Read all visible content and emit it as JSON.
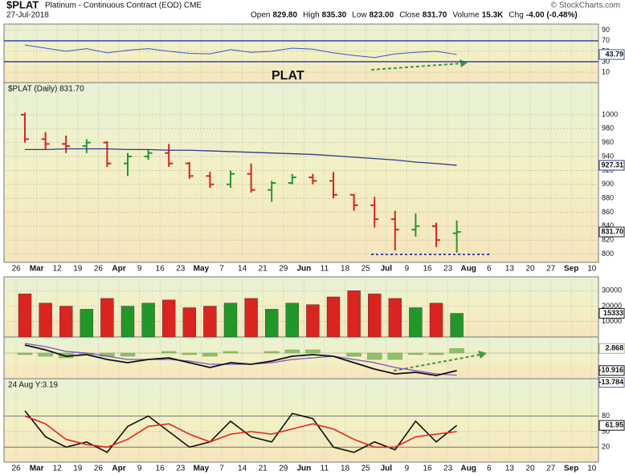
{
  "header": {
    "ticker": "$PLAT",
    "name": "Platinum - Continuous Contract (EOD) CME",
    "date": "27-Jul-2018",
    "copyright": "© StockCharts.com",
    "quote": [
      {
        "label": "Open",
        "value": "829.80"
      },
      {
        "label": "High",
        "value": "835.30"
      },
      {
        "label": "Low",
        "value": "823.00"
      },
      {
        "label": "Close",
        "value": "831.70"
      },
      {
        "label": "Volume",
        "value": "15.3K"
      },
      {
        "label": "Chg",
        "value": "-4.00 (-0.48%)"
      }
    ]
  },
  "chart_data": [
    {
      "type": "line",
      "annotation": "PLAT",
      "ylim": [
        -10,
        102
      ],
      "yticks": [
        10,
        30,
        50,
        70,
        90
      ],
      "reference_lines": [
        30,
        70
      ],
      "grid": true,
      "series": [
        {
          "color": "#3a55c8",
          "values": [
            62,
            56,
            50,
            55,
            47,
            52,
            55,
            50,
            46,
            45,
            53,
            48,
            50,
            56,
            54,
            47,
            42,
            38,
            45,
            48,
            50,
            43.79,
            null,
            null,
            null,
            null,
            null,
            null,
            null
          ],
          "last_label": "43.79"
        }
      ]
    },
    {
      "type": "ohlc",
      "title": "$PLAT (Daily) 831.70",
      "ylim": [
        788,
        1046
      ],
      "yticks": [
        800,
        820,
        840,
        860,
        880,
        900,
        920,
        940,
        960,
        980,
        1000
      ],
      "grid": true,
      "up_color": "#23962a",
      "down_color": "#d9241f",
      "categories": [
        "26",
        "Mar",
        "12",
        "19",
        "26",
        "Apr",
        "9",
        "16",
        "23",
        "May",
        "7",
        "14",
        "21",
        "29",
        "Jun",
        "11",
        "18",
        "25",
        "Jul",
        "9",
        "16",
        "23",
        "Aug",
        "6",
        "13",
        "20",
        "27",
        "Sep",
        "10"
      ],
      "open": [
        1000,
        965,
        958,
        955,
        960,
        930,
        940,
        945,
        930,
        912,
        900,
        915,
        892,
        902,
        910,
        905,
        885,
        870,
        850,
        835,
        840,
        829.8,
        null,
        null,
        null,
        null,
        null,
        null,
        null
      ],
      "high": [
        1003,
        975,
        970,
        965,
        962,
        945,
        950,
        958,
        932,
        918,
        920,
        930,
        905,
        915,
        915,
        918,
        886,
        882,
        862,
        858,
        845,
        848,
        null,
        null,
        null,
        null,
        null,
        null,
        null
      ],
      "low": [
        960,
        950,
        945,
        945,
        925,
        912,
        935,
        925,
        908,
        895,
        895,
        888,
        875,
        900,
        900,
        880,
        862,
        838,
        805,
        825,
        810,
        802,
        null,
        null,
        null,
        null,
        null,
        null,
        null
      ],
      "close": [
        965,
        958,
        955,
        960,
        930,
        940,
        945,
        930,
        912,
        900,
        915,
        892,
        902,
        910,
        905,
        885,
        870,
        850,
        835,
        840,
        820,
        831.7,
        null,
        null,
        null,
        null,
        null,
        null,
        null
      ],
      "close_label": "831.70",
      "ma": {
        "color": "#2b3a8c",
        "values": [
          950,
          950,
          951,
          951,
          951,
          950,
          950,
          949,
          949,
          948,
          947,
          946,
          945,
          944,
          943,
          941,
          939,
          937,
          935,
          932,
          930,
          927.31,
          null,
          null,
          null,
          null,
          null,
          null,
          null
        ],
        "last_label": "927.31"
      }
    },
    {
      "type": "bar",
      "ylim": [
        0,
        39000
      ],
      "yticks": [
        10000,
        20000,
        30000
      ],
      "grid": true,
      "values": [
        28000,
        22000,
        20000,
        18000,
        25000,
        20000,
        22000,
        24000,
        19000,
        20000,
        22000,
        25000,
        18000,
        22000,
        21000,
        26000,
        30000,
        28000,
        25000,
        19000,
        22000,
        15333,
        null,
        null,
        null,
        null,
        null,
        null,
        null
      ],
      "last_label": "15333"
    },
    {
      "type": "macd",
      "ylim": [
        -16,
        10
      ],
      "yticks": [],
      "histogram": {
        "color": "#8fc06a",
        "values": [
          -1,
          -2,
          -3,
          -1,
          -2,
          -2,
          0,
          1,
          -1,
          -2,
          1,
          0,
          1,
          2,
          2,
          0,
          -2,
          -4,
          -4,
          -1,
          -1,
          2.868,
          null,
          null,
          null,
          null,
          null,
          null,
          null
        ],
        "last_label": "2.868"
      },
      "macd": {
        "color": "#111111",
        "values": [
          5,
          2,
          -2,
          -1,
          -4,
          -6,
          -4,
          -3,
          -6,
          -9,
          -6,
          -7,
          -5,
          -2,
          -1,
          -2,
          -6,
          -10,
          -13,
          -12,
          -14,
          -10.916,
          null,
          null,
          null,
          null,
          null,
          null,
          null
        ],
        "last_label": "-10.916"
      },
      "signal": {
        "color": "#7a4fc8",
        "values": [
          6,
          4,
          1,
          0,
          -2,
          -4,
          -4,
          -4,
          -5,
          -7,
          -7,
          -7,
          -6,
          -4,
          -3,
          -2,
          -4,
          -6,
          -9,
          -11,
          -13,
          -13.784,
          null,
          null,
          null,
          null,
          null,
          null,
          null
        ],
        "last_label": "-13.784"
      }
    },
    {
      "type": "line",
      "annotation": "24 Aug Y:3.19",
      "ylim": [
        -9,
        152
      ],
      "yticks": [
        20,
        50,
        80
      ],
      "reference_lines": [
        20,
        80
      ],
      "grid": true,
      "categories": [
        "26",
        "Mar",
        "12",
        "19",
        "26",
        "Apr",
        "9",
        "16",
        "23",
        "May",
        "7",
        "14",
        "21",
        "29",
        "Jun",
        "11",
        "18",
        "25",
        "Jul",
        "9",
        "16",
        "23",
        "Aug",
        "6",
        "13",
        "20",
        "27",
        "Sep",
        "10"
      ],
      "series": [
        {
          "color": "#111111",
          "values": [
            90,
            40,
            20,
            30,
            10,
            60,
            80,
            50,
            20,
            30,
            70,
            40,
            30,
            85,
            75,
            20,
            10,
            30,
            15,
            70,
            30,
            61.95,
            null,
            null,
            null,
            null,
            null,
            null,
            null
          ],
          "last_label": "61.95"
        },
        {
          "color": "#e0261e",
          "values": [
            80,
            65,
            35,
            25,
            20,
            35,
            60,
            65,
            45,
            30,
            45,
            50,
            45,
            55,
            65,
            55,
            35,
            20,
            20,
            40,
            45,
            50,
            null,
            null,
            null,
            null,
            null,
            null,
            null
          ]
        }
      ]
    }
  ]
}
